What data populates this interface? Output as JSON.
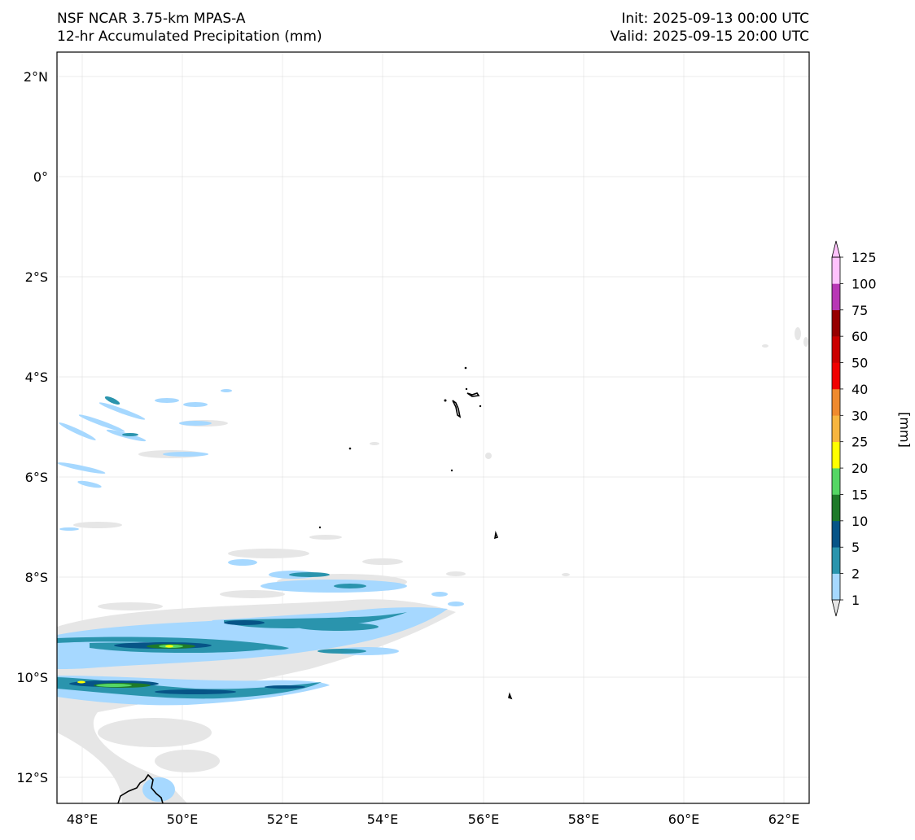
{
  "header": {
    "title_line1": "NSF NCAR 3.75-km MPAS-A",
    "title_line2": "12-hr Accumulated Precipitation (mm)",
    "init": "Init: 2025-09-13 00:00 UTC",
    "valid": "Valid: 2025-09-15 20:00 UTC"
  },
  "map": {
    "lon_labels": [
      "48°E",
      "50°E",
      "52°E",
      "54°E",
      "56°E",
      "58°E",
      "60°E",
      "62°E"
    ],
    "lat_labels": [
      "2°N",
      "0°",
      "2°S",
      "4°S",
      "6°S",
      "8°S",
      "10°S",
      "12°S"
    ],
    "lon_range": [
      47.5,
      62.5
    ],
    "lat_range": [
      -12.5,
      2.5
    ],
    "gridlines": true
  },
  "colorbar": {
    "unit_label": "[mm]",
    "levels": [
      "1",
      "2",
      "5",
      "10",
      "15",
      "20",
      "25",
      "30",
      "40",
      "50",
      "60",
      "75",
      "100",
      "125"
    ],
    "colors": [
      "#e6e6e6",
      "#a6d8ff",
      "#2a94ad",
      "#065487",
      "#1e7a29",
      "#55d664",
      "#ffff00",
      "#f7b53f",
      "#ef8a2e",
      "#f00000",
      "#cb0000",
      "#960000",
      "#b837b5",
      "#ffc2fc"
    ]
  },
  "precip_colors": {
    "light_gray": "#e6e6e6",
    "light_blue": "#a6d8ff",
    "teal": "#2a94ad",
    "navy": "#065487",
    "dark_green": "#1e7a29",
    "light_green": "#55d664",
    "yellow": "#ffff00"
  }
}
